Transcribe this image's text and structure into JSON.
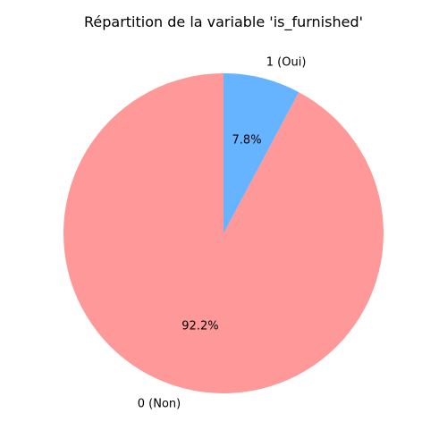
{
  "chart_data": {
    "type": "pie",
    "title": "Répartition de la variable 'is_furnished'",
    "slices": [
      {
        "label": "0 (Non)",
        "value": 92.2,
        "pct_label": "92.2%",
        "color": "#ff9999"
      },
      {
        "label": "1 (Oui)",
        "value": 7.8,
        "pct_label": "7.8%",
        "color": "#66b3ff"
      }
    ],
    "start_angle_deg": 90,
    "direction": "counterclockwise",
    "legend": "none"
  }
}
